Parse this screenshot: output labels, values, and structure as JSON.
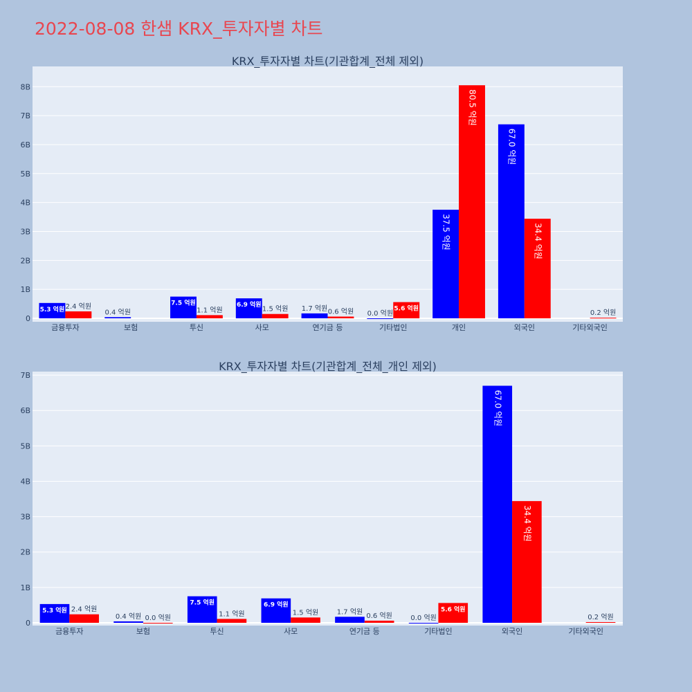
{
  "page": {
    "title": "2022-08-08 한샘 KRX_투자자별 차트",
    "background": "#b0c4de",
    "plot_background": "#e5ecf6",
    "title_color": "#e8464f"
  },
  "chart_data": [
    {
      "type": "bar",
      "title": "KRX_투자자별 차트(기관합계_전체 제외)",
      "categories": [
        "금융투자",
        "보험",
        "투신",
        "사모",
        "연기금 등",
        "기타법인",
        "개인",
        "외국인",
        "기타외국인"
      ],
      "series": [
        {
          "color": "#0000ff",
          "values": [
            5.3,
            0.4,
            7.5,
            6.9,
            1.7,
            0.0,
            37.5,
            67.0,
            null
          ],
          "labels": [
            "5.3 억원",
            "0.4 억원",
            "7.5 억원",
            "6.9 억원",
            "1.7 억원",
            "0.0 억원",
            "37.5 억원",
            "67.0 억원",
            ""
          ]
        },
        {
          "color": "#ff0000",
          "values": [
            2.4,
            null,
            1.1,
            1.5,
            0.6,
            5.6,
            80.5,
            34.4,
            0.2
          ],
          "labels": [
            "2.4 억원",
            "",
            "1.1 억원",
            "1.5 억원",
            "0.6 억원",
            "5.6 억원",
            "80.5 억원",
            "34.4 억원",
            "0.2 억원"
          ]
        }
      ],
      "y_ticks": [
        0,
        10,
        20,
        30,
        40,
        50,
        60,
        70,
        80
      ],
      "y_tick_labels": [
        "0",
        "1B",
        "2B",
        "3B",
        "4B",
        "5B",
        "6B",
        "7B",
        "8B"
      ],
      "ylim": [
        0,
        87
      ],
      "grid": true
    },
    {
      "type": "bar",
      "title": "KRX_투자자별 차트(기관합계_전체_개인 제외)",
      "categories": [
        "금융투자",
        "보험",
        "투신",
        "사모",
        "연기금 등",
        "기타법인",
        "외국인",
        "기타외국인"
      ],
      "series": [
        {
          "color": "#0000ff",
          "values": [
            5.3,
            0.4,
            7.5,
            6.9,
            1.7,
            0.0,
            67.0,
            null
          ],
          "labels": [
            "5.3 억원",
            "0.4 억원",
            "7.5 억원",
            "6.9 억원",
            "1.7 억원",
            "0.0 억원",
            "67.0 억원",
            ""
          ]
        },
        {
          "color": "#ff0000",
          "values": [
            2.4,
            0.0,
            1.1,
            1.5,
            0.6,
            5.6,
            34.4,
            0.2
          ],
          "labels": [
            "2.4 억원",
            "0.0 억원",
            "1.1 억원",
            "1.5 억원",
            "0.6 억원",
            "5.6 억원",
            "34.4 억원",
            "0.2 억원"
          ]
        }
      ],
      "y_ticks": [
        0,
        10,
        20,
        30,
        40,
        50,
        60,
        70
      ],
      "y_tick_labels": [
        "0",
        "1B",
        "2B",
        "3B",
        "4B",
        "5B",
        "6B",
        "7B"
      ],
      "ylim": [
        0,
        71
      ],
      "grid": true
    }
  ]
}
